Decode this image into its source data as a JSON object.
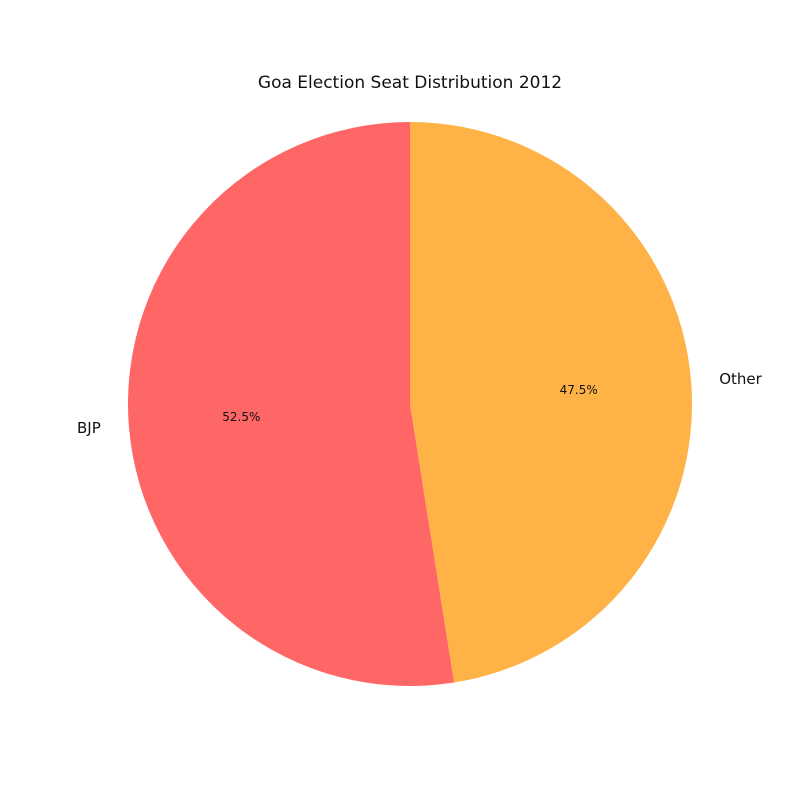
{
  "chart_data": {
    "type": "pie",
    "title": "Goa Election Seat Distribution 2012",
    "start_angle_deg": 90,
    "direction": "counterclockwise",
    "slices": [
      {
        "label": "BJP",
        "value": 52.5,
        "pct_label": "52.5%",
        "color": "#ff6666"
      },
      {
        "label": "Other",
        "value": 47.5,
        "pct_label": "47.5%",
        "color": "#ffb347"
      }
    ]
  }
}
